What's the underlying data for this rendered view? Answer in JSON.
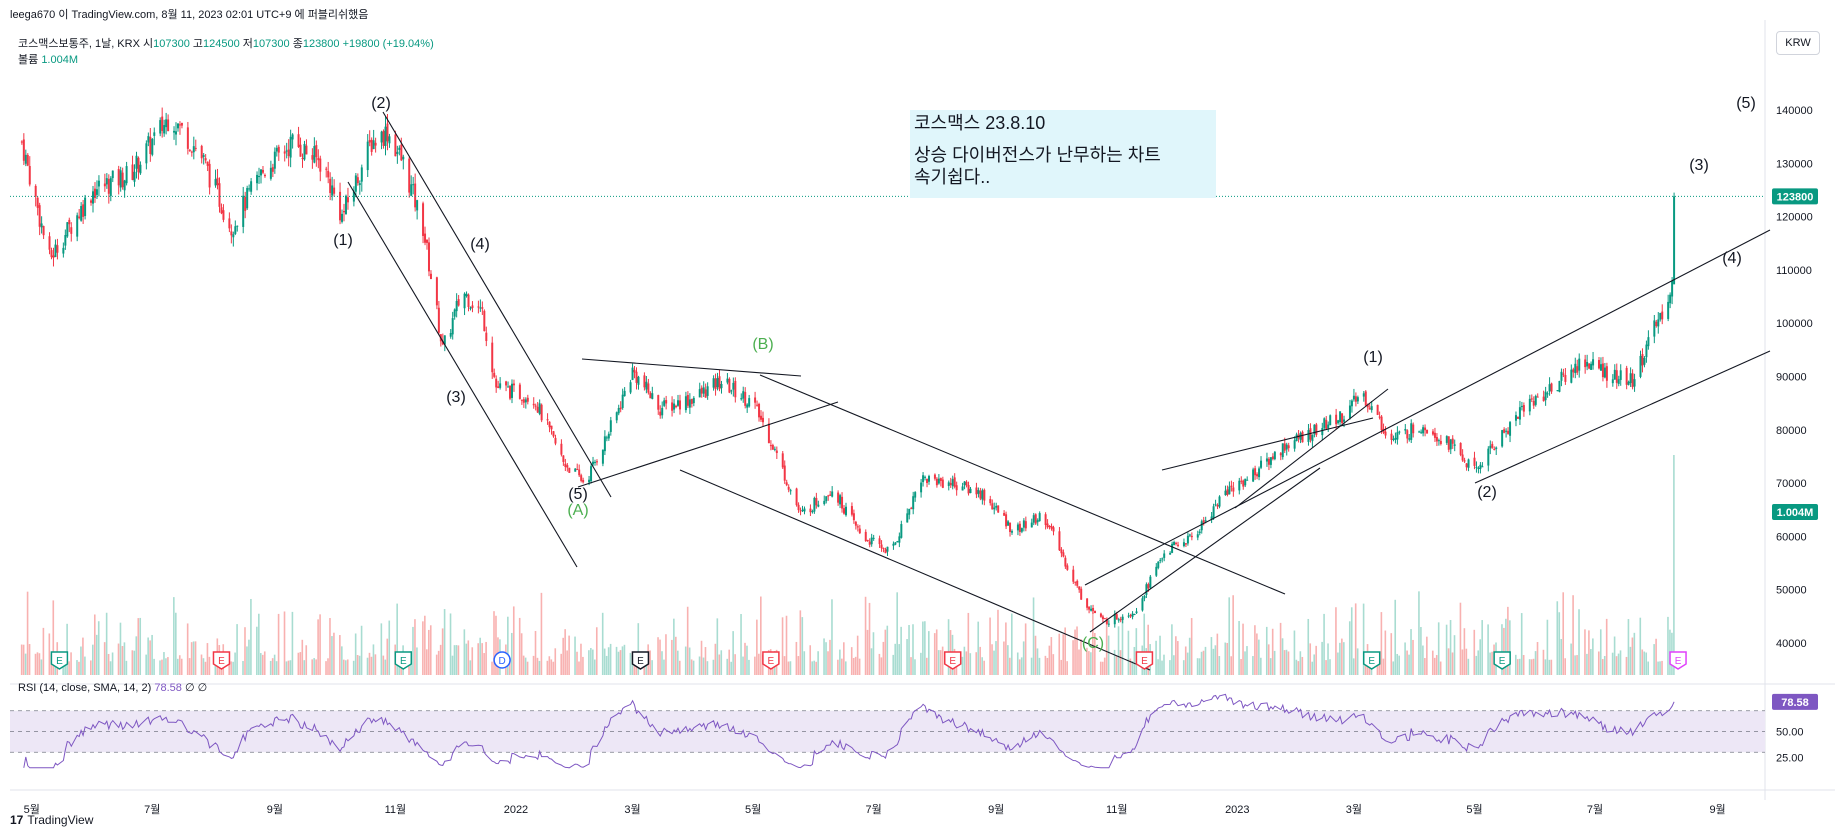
{
  "header": {
    "publish_line": "leega670 이 TradingView.com, 8월 11, 2023 02:01 UTC+9 에 퍼블리쉬했음"
  },
  "symbol": {
    "name_line": "코스맥스보통주, 1날, KRX",
    "open_label": "시",
    "open": "107300",
    "high_label": "고",
    "high": "124500",
    "low_label": "저",
    "low": "107300",
    "close_label": "종",
    "close": "123800",
    "change": "+19800 (+19.04%)"
  },
  "volume_legend": {
    "label": "볼륨",
    "value": "1.004M"
  },
  "currency_button": "KRW",
  "note": {
    "line1": "코스맥스 23.8.10",
    "line2": "상승 다이버전스가 난무하는 차트",
    "line3": "속기쉽다.."
  },
  "rsi_legend": {
    "label": "RSI (14, close, SMA, 14, 2)",
    "value": "78.58",
    "extra": "∅ ∅"
  },
  "brand": {
    "name": "TradingView"
  },
  "colors": {
    "up": "#089981",
    "down": "#f23645",
    "rsi": "#7e57c2",
    "rsi_band": "#ede7f6",
    "note_bg": "#e0f6fb",
    "wave_green": "#4caf50",
    "earnings_red": "#f23645",
    "earnings_green": "#089981",
    "dividend_blue": "#2962ff"
  },
  "chart_data": {
    "type": "candlestick",
    "timeframe": "1D",
    "y_ticks": [
      140000,
      130000,
      120000,
      110000,
      100000,
      90000,
      80000,
      70000,
      60000,
      50000,
      40000
    ],
    "ylim": [
      34000,
      146000
    ],
    "x_ticks": [
      "5월",
      "7월",
      "9월",
      "11월",
      "2022",
      "3월",
      "5월",
      "7월",
      "9월",
      "11월",
      "2023",
      "3월",
      "5월",
      "7월",
      "9월"
    ],
    "last_price_label": "123800",
    "last_volume_label": "1.004M",
    "price_path": [
      [
        "2021-04-26",
        134000
      ],
      [
        "2021-05-10",
        112000
      ],
      [
        "2021-06-01",
        125000
      ],
      [
        "2021-06-20",
        128000
      ],
      [
        "2021-07-10",
        139000
      ],
      [
        "2021-07-25",
        132000
      ],
      [
        "2021-08-10",
        118000
      ],
      [
        "2021-08-25",
        128000
      ],
      [
        "2021-09-10",
        134000
      ],
      [
        "2021-09-25",
        130000
      ],
      [
        "2021-10-05",
        120000
      ],
      [
        "2021-10-20",
        134000
      ],
      [
        "2021-10-28",
        136000
      ],
      [
        "2021-11-05",
        130000
      ],
      [
        "2021-11-15",
        118000
      ],
      [
        "2021-11-25",
        95000
      ],
      [
        "2021-12-05",
        106000
      ],
      [
        "2021-12-15",
        102000
      ],
      [
        "2021-12-22",
        88000
      ],
      [
        "2022-01-10",
        86000
      ],
      [
        "2022-01-25",
        74000
      ],
      [
        "2022-02-05",
        70000
      ],
      [
        "2022-02-20",
        82000
      ],
      [
        "2022-03-01",
        91000
      ],
      [
        "2022-03-15",
        84000
      ],
      [
        "2022-04-01",
        86000
      ],
      [
        "2022-04-15",
        89000
      ],
      [
        "2022-05-01",
        85000
      ],
      [
        "2022-05-10",
        78000
      ],
      [
        "2022-05-25",
        64000
      ],
      [
        "2022-06-10",
        69000
      ],
      [
        "2022-06-25",
        60000
      ],
      [
        "2022-07-10",
        57000
      ],
      [
        "2022-07-25",
        71000
      ],
      [
        "2022-08-10",
        70000
      ],
      [
        "2022-08-25",
        68000
      ],
      [
        "2022-09-10",
        61000
      ],
      [
        "2022-09-25",
        64000
      ],
      [
        "2022-10-05",
        56000
      ],
      [
        "2022-10-15",
        48000
      ],
      [
        "2022-10-25",
        44000
      ],
      [
        "2022-11-10",
        46000
      ],
      [
        "2022-11-25",
        57000
      ],
      [
        "2022-12-10",
        60000
      ],
      [
        "2022-12-25",
        68000
      ],
      [
        "2023-01-10",
        72000
      ],
      [
        "2023-01-25",
        77000
      ],
      [
        "2023-02-10",
        80000
      ],
      [
        "2023-02-25",
        83000
      ],
      [
        "2023-03-05",
        87000
      ],
      [
        "2023-03-20",
        78000
      ],
      [
        "2023-04-05",
        81000
      ],
      [
        "2023-04-20",
        77000
      ],
      [
        "2023-05-01",
        72000
      ],
      [
        "2023-05-15",
        79000
      ],
      [
        "2023-05-25",
        84000
      ],
      [
        "2023-06-10",
        88000
      ],
      [
        "2023-06-25",
        93000
      ],
      [
        "2023-07-10",
        90000
      ],
      [
        "2023-07-20",
        89000
      ],
      [
        "2023-07-30",
        98000
      ],
      [
        "2023-08-05",
        103000
      ],
      [
        "2023-08-09",
        107300
      ],
      [
        "2023-08-10",
        123800
      ]
    ],
    "wave_labels": [
      {
        "text": "(2)",
        "date": "2021-10-28",
        "price": 141000,
        "color": "black"
      },
      {
        "text": "(1)",
        "date": "2021-10-05",
        "price": 114000,
        "color": "black"
      },
      {
        "text": "(4)",
        "date": "2021-12-05",
        "price": 108000,
        "color": "black"
      },
      {
        "text": "(3)",
        "date": "2021-12-22",
        "price": 86000,
        "color": "black"
      },
      {
        "text": "(5)",
        "date": "2022-02-05",
        "price": 67000,
        "color": "black"
      },
      {
        "text": "(A)",
        "date": "2022-02-05",
        "price": 64000,
        "color": "green"
      },
      {
        "text": "(B)",
        "date": "2022-05-01",
        "price": 92000,
        "color": "green"
      },
      {
        "text": "(C)",
        "date": "2022-10-25",
        "price": 38000,
        "color": "green"
      },
      {
        "text": "(1)",
        "date": "2023-03-05",
        "price": 90000,
        "color": "black"
      },
      {
        "text": "(2)",
        "date": "2023-05-01",
        "price": 67000,
        "color": "black"
      },
      {
        "text": "(3)",
        "date": "2023-08-10",
        "price": 127000,
        "color": "black"
      },
      {
        "text": "(4)",
        "date": "2023-08-25",
        "price": 109000,
        "color": "black"
      },
      {
        "text": "(5)",
        "date": "2023-09-05",
        "price": 140000,
        "color": "black"
      }
    ],
    "event_markers": [
      {
        "kind": "E",
        "date": "2021-05-15",
        "color": "green"
      },
      {
        "kind": "E",
        "date": "2021-08-05",
        "color": "red"
      },
      {
        "kind": "E",
        "date": "2021-11-05",
        "color": "green"
      },
      {
        "kind": "D",
        "date": "2021-12-25",
        "color": "blue"
      },
      {
        "kind": "E",
        "date": "2022-03-05",
        "color": "black"
      },
      {
        "kind": "E",
        "date": "2022-05-10",
        "color": "red"
      },
      {
        "kind": "E",
        "date": "2022-08-10",
        "color": "red"
      },
      {
        "kind": "E",
        "date": "2022-11-15",
        "color": "red"
      },
      {
        "kind": "E",
        "date": "2023-03-10",
        "color": "green"
      },
      {
        "kind": "E",
        "date": "2023-05-15",
        "color": "green"
      },
      {
        "kind": "E",
        "date": "2023-08-12",
        "color": "magenta"
      }
    ],
    "rsi": {
      "levels": [
        70,
        50,
        30
      ],
      "y_ticks": [
        "50.00",
        "25.00"
      ],
      "last": "78.58"
    }
  }
}
